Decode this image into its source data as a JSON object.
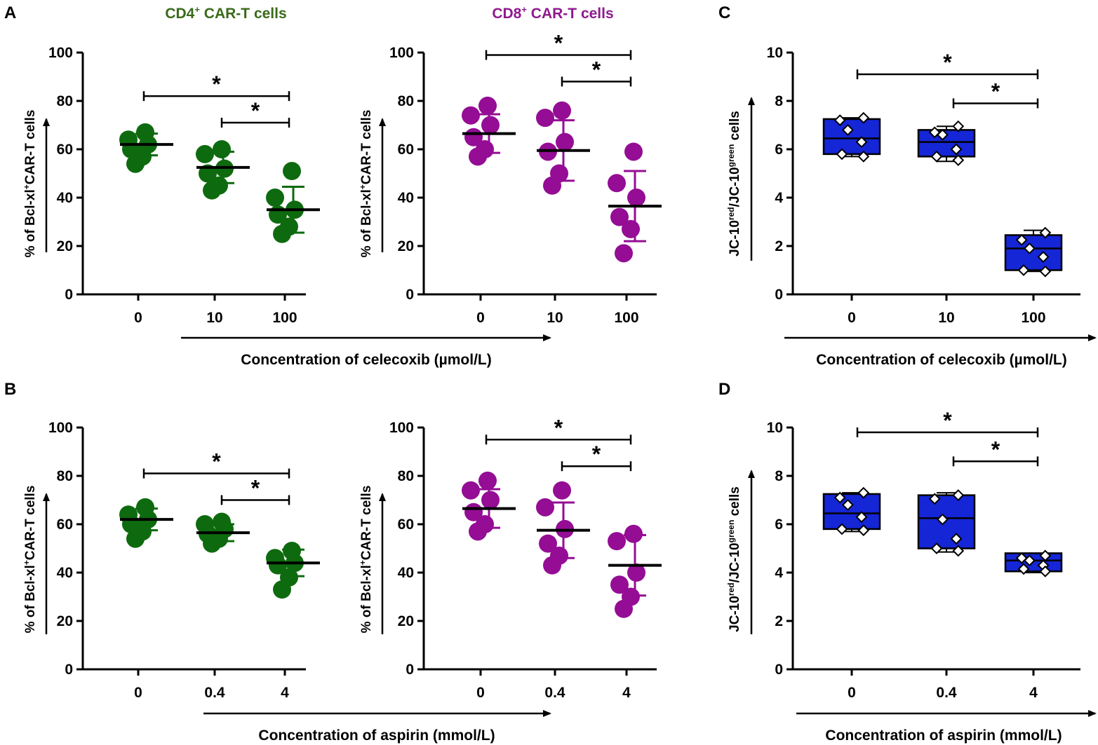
{
  "figure": {
    "panel_labels": [
      "A",
      "B",
      "C",
      "D"
    ],
    "titles": {
      "cd4": {
        "main": "CD4",
        "sup": "+",
        "rest": " CAR-T cells",
        "color": "#3a6a1a"
      },
      "cd8": {
        "main": "CD8",
        "sup": "+",
        "rest": " CAR-T cells",
        "color": "#8e1a8e"
      }
    },
    "ylabel_bcl": {
      "pre": "% of Bcl-xl",
      "sup": "+",
      "post": "CAR-T cells"
    },
    "ylabel_jc": {
      "pre": "JC-10",
      "sup1": "red",
      "mid": "/JC-10",
      "sup2": "green",
      "post": " cells"
    },
    "xtitle_celecoxib": "Concentration of celecoxib (µmol/L)",
    "xtitle_aspirin": "Concentration of aspirin (mmol/L)",
    "significance": "*",
    "colors": {
      "cd4": "#0e6a0e",
      "cd8": "#940d94",
      "box": "#1426d6",
      "axis": "#000000"
    }
  },
  "chart_data": [
    {
      "id": "A-CD4",
      "type": "scatter",
      "panel": "A",
      "title": "CD4+ CAR-T cells",
      "ylabel": "% of Bcl-xl+CAR-T cells",
      "xlabel": "Concentration of celecoxib (µmol/L)",
      "ylim": [
        0,
        100
      ],
      "yticks": [
        0,
        20,
        40,
        60,
        80,
        100
      ],
      "categories": [
        "0",
        "10",
        "100"
      ],
      "points": [
        [
          67,
          64,
          62,
          60,
          57,
          54
        ],
        [
          60,
          58,
          52,
          50,
          45,
          43
        ],
        [
          51,
          40,
          35,
          33,
          28,
          25
        ]
      ],
      "means": [
        62,
        52.5,
        35
      ],
      "sd": [
        4.5,
        6.5,
        9.5
      ],
      "significance": [
        {
          "from": 0,
          "to": 2,
          "y": 82,
          "label": "*"
        },
        {
          "from": 1,
          "to": 2,
          "y": 71,
          "label": "*"
        }
      ]
    },
    {
      "id": "A-CD8",
      "type": "scatter",
      "panel": "A",
      "title": "CD8+ CAR-T cells",
      "ylabel": "% of Bcl-xl+CAR-T cells",
      "xlabel": "Concentration of celecoxib (µmol/L)",
      "ylim": [
        0,
        100
      ],
      "yticks": [
        0,
        20,
        40,
        60,
        80,
        100
      ],
      "categories": [
        "0",
        "10",
        "100"
      ],
      "points": [
        [
          78,
          74,
          70,
          65,
          60,
          57
        ],
        [
          76,
          73,
          63,
          59,
          50,
          45
        ],
        [
          59,
          46,
          40,
          32,
          27,
          17
        ]
      ],
      "means": [
        66.5,
        59.5,
        36.5
      ],
      "sd": [
        8,
        12.5,
        14.5
      ],
      "significance": [
        {
          "from": 0,
          "to": 2,
          "y": 99,
          "label": "*"
        },
        {
          "from": 1,
          "to": 2,
          "y": 88,
          "label": "*"
        }
      ]
    },
    {
      "id": "B-CD4",
      "type": "scatter",
      "panel": "B",
      "ylabel": "% of Bcl-xl+CAR-T cells",
      "xlabel": "Concentration of aspirin (mmol/L)",
      "ylim": [
        0,
        100
      ],
      "yticks": [
        0,
        20,
        40,
        60,
        80,
        100
      ],
      "categories": [
        "0",
        "0.4",
        "4"
      ],
      "points": [
        [
          67,
          64,
          62,
          60,
          57,
          54
        ],
        [
          61,
          60,
          58,
          56,
          54,
          52
        ],
        [
          49,
          46,
          44,
          43,
          38,
          33
        ]
      ],
      "means": [
        62,
        56.5,
        44
      ],
      "sd": [
        4.5,
        3.5,
        5.5
      ],
      "significance": [
        {
          "from": 0,
          "to": 2,
          "y": 81,
          "label": "*"
        },
        {
          "from": 1,
          "to": 2,
          "y": 70,
          "label": "*"
        }
      ]
    },
    {
      "id": "B-CD8",
      "type": "scatter",
      "panel": "B",
      "ylabel": "% of Bcl-xl+CAR-T cells",
      "xlabel": "Concentration of aspirin (mmol/L)",
      "ylim": [
        0,
        100
      ],
      "yticks": [
        0,
        20,
        40,
        60,
        80,
        100
      ],
      "categories": [
        "0",
        "0.4",
        "4"
      ],
      "points": [
        [
          78,
          74,
          70,
          65,
          60,
          57
        ],
        [
          74,
          67,
          58,
          52,
          47,
          43
        ],
        [
          56,
          53,
          40,
          35,
          30,
          25
        ]
      ],
      "means": [
        66.5,
        57.5,
        43
      ],
      "sd": [
        8,
        11.5,
        12.5
      ],
      "significance": [
        {
          "from": 0,
          "to": 2,
          "y": 95,
          "label": "*"
        },
        {
          "from": 1,
          "to": 2,
          "y": 84,
          "label": "*"
        }
      ]
    },
    {
      "id": "C",
      "type": "box",
      "panel": "C",
      "ylabel": "JC-10red/JC-10green cells",
      "xlabel": "Concentration of celecoxib (µmol/L)",
      "ylim": [
        0,
        10
      ],
      "yticks": [
        0,
        2,
        4,
        6,
        8,
        10
      ],
      "categories": [
        "0",
        "10",
        "100"
      ],
      "boxes": [
        {
          "min": 5.7,
          "q1": 5.8,
          "median": 6.45,
          "q3": 7.25,
          "max": 7.3
        },
        {
          "min": 5.5,
          "q1": 5.7,
          "median": 6.3,
          "q3": 6.8,
          "max": 6.95
        },
        {
          "min": 0.95,
          "q1": 1.0,
          "median": 1.9,
          "q3": 2.45,
          "max": 2.65
        }
      ],
      "points": [
        [
          7.3,
          7.2,
          6.8,
          6.3,
          5.8,
          5.7
        ],
        [
          6.95,
          6.7,
          6.6,
          6.0,
          5.7,
          5.55
        ],
        [
          2.55,
          2.25,
          1.9,
          1.55,
          1.0,
          0.95
        ]
      ],
      "significance": [
        {
          "from": 0,
          "to": 2,
          "y": 9.1,
          "label": "*"
        },
        {
          "from": 1,
          "to": 2,
          "y": 7.9,
          "label": "*"
        }
      ]
    },
    {
      "id": "D",
      "type": "box",
      "panel": "D",
      "ylabel": "JC-10red/JC-10green cells",
      "xlabel": "Concentration of aspirin (mmol/L)",
      "ylim": [
        0,
        10
      ],
      "yticks": [
        0,
        2,
        4,
        6,
        8,
        10
      ],
      "categories": [
        "0",
        "0.4",
        "4"
      ],
      "boxes": [
        {
          "min": 5.7,
          "q1": 5.8,
          "median": 6.45,
          "q3": 7.25,
          "max": 7.3
        },
        {
          "min": 4.85,
          "q1": 5.0,
          "median": 6.25,
          "q3": 7.2,
          "max": 7.3
        },
        {
          "min": 4.0,
          "q1": 4.05,
          "median": 4.5,
          "q3": 4.8,
          "max": 4.8
        }
      ],
      "points": [
        [
          7.3,
          7.1,
          6.8,
          6.3,
          5.8,
          5.75
        ],
        [
          7.2,
          7.05,
          6.2,
          5.4,
          5.0,
          4.9
        ],
        [
          4.7,
          4.6,
          4.5,
          4.3,
          4.15,
          4.05
        ]
      ],
      "significance": [
        {
          "from": 0,
          "to": 2,
          "y": 9.8,
          "label": "*"
        },
        {
          "from": 1,
          "to": 2,
          "y": 8.6,
          "label": "*"
        }
      ]
    }
  ]
}
